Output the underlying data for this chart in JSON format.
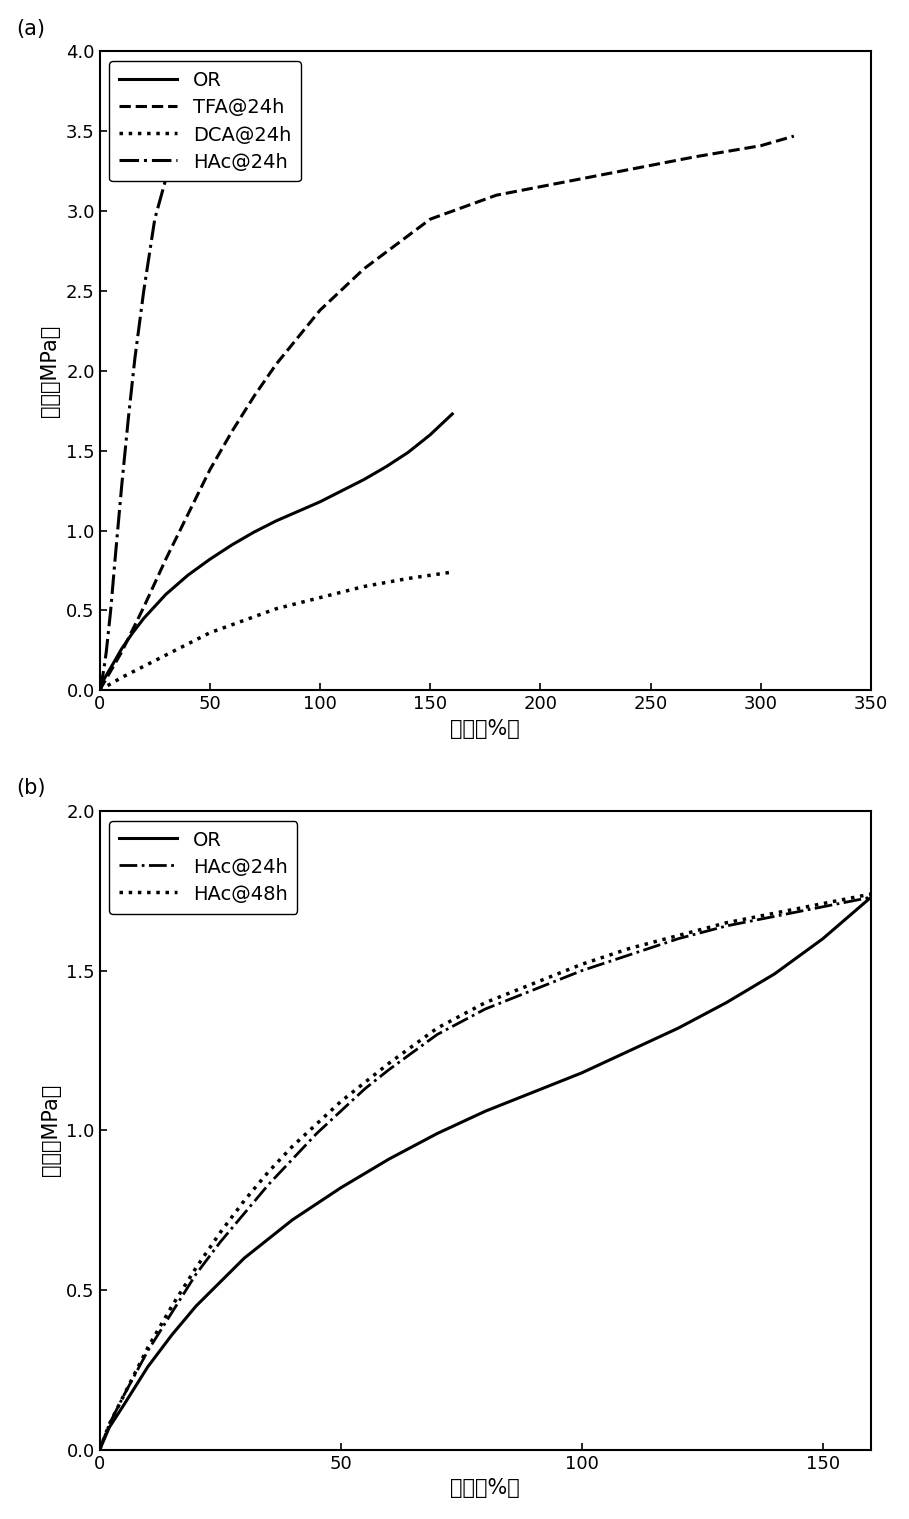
{
  "panel_a": {
    "label": "(a)",
    "xlim": [
      0,
      350
    ],
    "ylim": [
      0,
      4.0
    ],
    "xticks": [
      0,
      50,
      100,
      150,
      200,
      250,
      300,
      350
    ],
    "yticks": [
      0.0,
      0.5,
      1.0,
      1.5,
      2.0,
      2.5,
      3.0,
      3.5,
      4.0
    ],
    "xlabel": "应变（%）",
    "ylabel": "应力（MPa）",
    "series": [
      {
        "label": "OR",
        "linestyle": "solid",
        "linewidth": 2.2,
        "color": "#000000",
        "x": [
          0,
          2,
          5,
          10,
          15,
          20,
          30,
          40,
          50,
          60,
          70,
          80,
          90,
          100,
          110,
          120,
          130,
          140,
          150,
          160
        ],
        "y": [
          0,
          0.07,
          0.14,
          0.26,
          0.36,
          0.45,
          0.6,
          0.72,
          0.82,
          0.91,
          0.99,
          1.06,
          1.12,
          1.18,
          1.25,
          1.32,
          1.4,
          1.49,
          1.6,
          1.73
        ]
      },
      {
        "label": "TFA@24h",
        "linestyle": "dashed",
        "linewidth": 2.2,
        "color": "#000000",
        "x": [
          0,
          5,
          10,
          20,
          30,
          40,
          50,
          60,
          70,
          80,
          100,
          120,
          150,
          180,
          210,
          240,
          270,
          300,
          315
        ],
        "y": [
          0,
          0.12,
          0.24,
          0.52,
          0.82,
          1.1,
          1.38,
          1.62,
          1.84,
          2.04,
          2.38,
          2.64,
          2.95,
          3.1,
          3.18,
          3.26,
          3.34,
          3.41,
          3.47
        ]
      },
      {
        "label": "DCA@24h",
        "linestyle": "dotted",
        "linewidth": 2.5,
        "color": "#000000",
        "x": [
          0,
          5,
          10,
          20,
          30,
          40,
          50,
          60,
          80,
          100,
          120,
          140,
          160
        ],
        "y": [
          0,
          0.04,
          0.08,
          0.15,
          0.22,
          0.29,
          0.36,
          0.41,
          0.51,
          0.58,
          0.65,
          0.7,
          0.74
        ]
      },
      {
        "label": "HAc@24h",
        "linestyle": "dashdot",
        "linewidth": 2.2,
        "color": "#000000",
        "x": [
          0,
          1,
          2,
          3,
          5,
          7,
          10,
          13,
          16,
          20,
          25,
          30
        ],
        "y": [
          0,
          0.06,
          0.14,
          0.24,
          0.5,
          0.82,
          1.28,
          1.7,
          2.08,
          2.5,
          2.95,
          3.2
        ]
      }
    ]
  },
  "panel_b": {
    "label": "(b)",
    "xlim": [
      0,
      160
    ],
    "ylim": [
      0,
      2.0
    ],
    "xticks": [
      0,
      50,
      100,
      150
    ],
    "yticks": [
      0.0,
      0.5,
      1.0,
      1.5,
      2.0
    ],
    "xlabel": "应变（%）",
    "ylabel": "应力（MPa）",
    "series": [
      {
        "label": "OR",
        "linestyle": "solid",
        "linewidth": 2.2,
        "color": "#000000",
        "x": [
          0,
          2,
          5,
          10,
          15,
          20,
          30,
          40,
          50,
          60,
          70,
          80,
          90,
          100,
          110,
          120,
          130,
          140,
          150,
          160
        ],
        "y": [
          0,
          0.07,
          0.14,
          0.26,
          0.36,
          0.45,
          0.6,
          0.72,
          0.82,
          0.91,
          0.99,
          1.06,
          1.12,
          1.18,
          1.25,
          1.32,
          1.4,
          1.49,
          1.6,
          1.73
        ]
      },
      {
        "label": "HAc@24h",
        "linestyle": "dashdot",
        "linewidth": 2.0,
        "color": "#000000",
        "x": [
          0,
          2,
          5,
          10,
          15,
          20,
          25,
          30,
          35,
          40,
          45,
          50,
          55,
          60,
          70,
          80,
          90,
          100,
          110,
          120,
          130,
          140,
          150,
          160
        ],
        "y": [
          0,
          0.08,
          0.17,
          0.31,
          0.43,
          0.55,
          0.65,
          0.74,
          0.83,
          0.91,
          0.99,
          1.06,
          1.13,
          1.19,
          1.3,
          1.38,
          1.44,
          1.5,
          1.55,
          1.6,
          1.64,
          1.67,
          1.7,
          1.73
        ]
      },
      {
        "label": "HAc@48h",
        "linestyle": "dotted",
        "linewidth": 2.5,
        "color": "#000000",
        "x": [
          0,
          2,
          5,
          10,
          15,
          20,
          25,
          30,
          35,
          40,
          45,
          50,
          55,
          60,
          70,
          80,
          90,
          100,
          110,
          120,
          130,
          140,
          150,
          160
        ],
        "y": [
          0,
          0.08,
          0.17,
          0.32,
          0.45,
          0.57,
          0.68,
          0.78,
          0.87,
          0.95,
          1.02,
          1.09,
          1.15,
          1.21,
          1.32,
          1.4,
          1.46,
          1.52,
          1.57,
          1.61,
          1.65,
          1.68,
          1.71,
          1.74
        ]
      }
    ]
  },
  "font_size_label": 15,
  "font_size_tick": 13,
  "font_size_legend": 14,
  "font_size_panel_label": 15
}
